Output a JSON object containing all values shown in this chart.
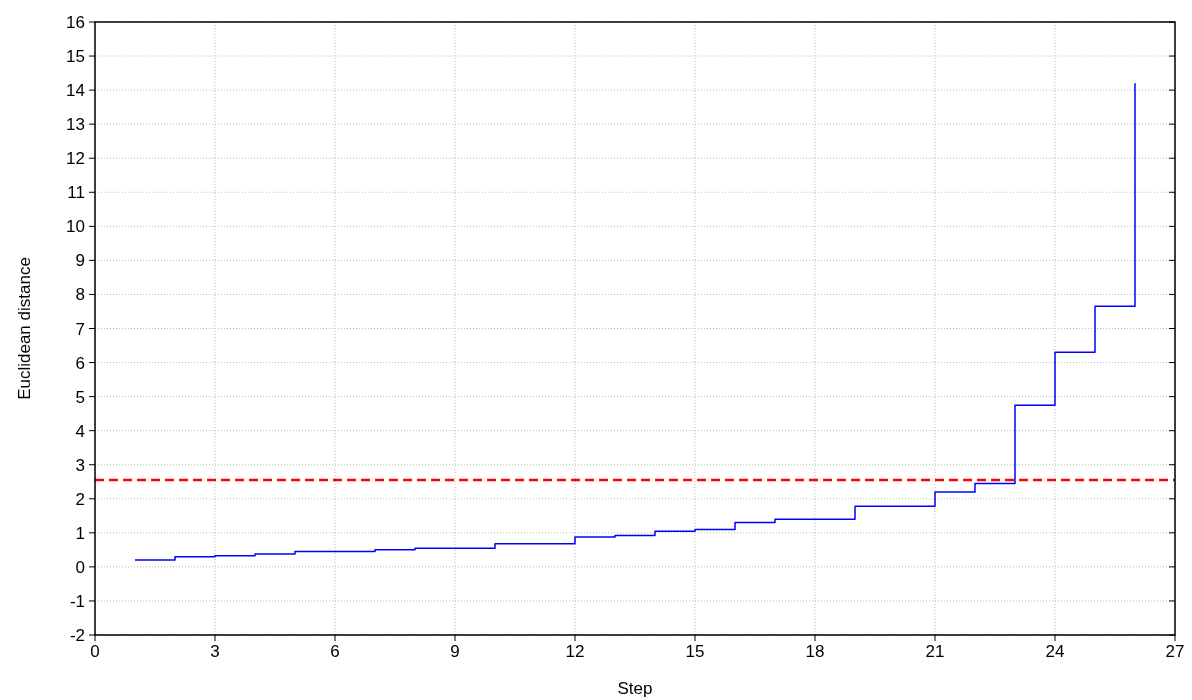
{
  "chart_data": {
    "type": "step",
    "xlabel": "Step",
    "ylabel": "Euclidean distance",
    "x": [
      1,
      2,
      3,
      4,
      5,
      6,
      7,
      8,
      9,
      10,
      11,
      12,
      13,
      14,
      15,
      16,
      17,
      18,
      19,
      20,
      21,
      22,
      23,
      24,
      25,
      26
    ],
    "series": [
      {
        "color": "#0000ff",
        "values": [
          0.2,
          0.3,
          0.33,
          0.38,
          0.45,
          0.45,
          0.5,
          0.55,
          0.55,
          0.68,
          0.68,
          0.88,
          0.92,
          1.05,
          1.1,
          1.3,
          1.4,
          1.4,
          1.78,
          1.78,
          2.2,
          2.45,
          4.75,
          6.3,
          7.65,
          14.2
        ]
      }
    ],
    "xlim": [
      0,
      27
    ],
    "xticks": [
      0,
      3,
      6,
      9,
      12,
      15,
      18,
      21,
      24,
      27
    ],
    "ylim": [
      -2,
      16
    ],
    "yticks": [
      -2,
      -1,
      0,
      1,
      2,
      3,
      4,
      5,
      6,
      7,
      8,
      9,
      10,
      11,
      12,
      13,
      14,
      15,
      16
    ],
    "grid": true,
    "marker": "none",
    "line_style": "solid",
    "ref_lines": [
      {
        "axis": "y",
        "value": 2.55,
        "color": "#ff0000",
        "line_style": "dashed"
      }
    ]
  }
}
